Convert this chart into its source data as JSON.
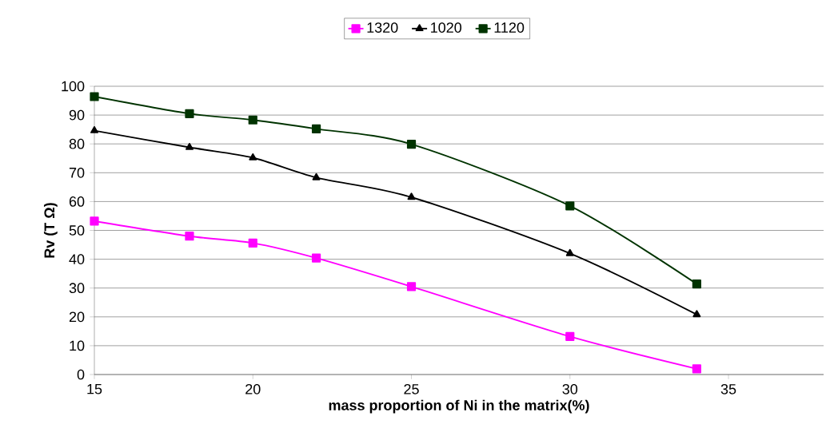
{
  "chart_data": {
    "type": "line",
    "xlabel": "mass proportion of Ni in the matrix(%)",
    "ylabel": "Rv (T Ω)",
    "x": [
      15,
      18,
      20,
      22,
      25,
      30,
      34
    ],
    "series": [
      {
        "name": "1320",
        "color": "#ff00ff",
        "marker": "square",
        "values": [
          53.2,
          48.0,
          45.6,
          40.4,
          30.5,
          13.2,
          2
        ]
      },
      {
        "name": "1020",
        "color": "#000000",
        "marker": "triangle",
        "values": [
          84.6,
          78.8,
          75.2,
          68.3,
          61.5,
          42.0,
          20.8
        ]
      },
      {
        "name": "1120",
        "color": "#003300",
        "marker": "square",
        "values": [
          96.4,
          90.5,
          88.3,
          85.2,
          79.9,
          58.5,
          31.4
        ]
      }
    ],
    "xlim": [
      15,
      38
    ],
    "ylim": [
      0,
      100
    ],
    "xticks": [
      15,
      20,
      25,
      30,
      35
    ],
    "yticks": [
      0,
      10,
      20,
      30,
      40,
      50,
      60,
      70,
      80,
      90,
      100
    ],
    "grid": "y",
    "legend": "top",
    "line_style": "solid"
  }
}
